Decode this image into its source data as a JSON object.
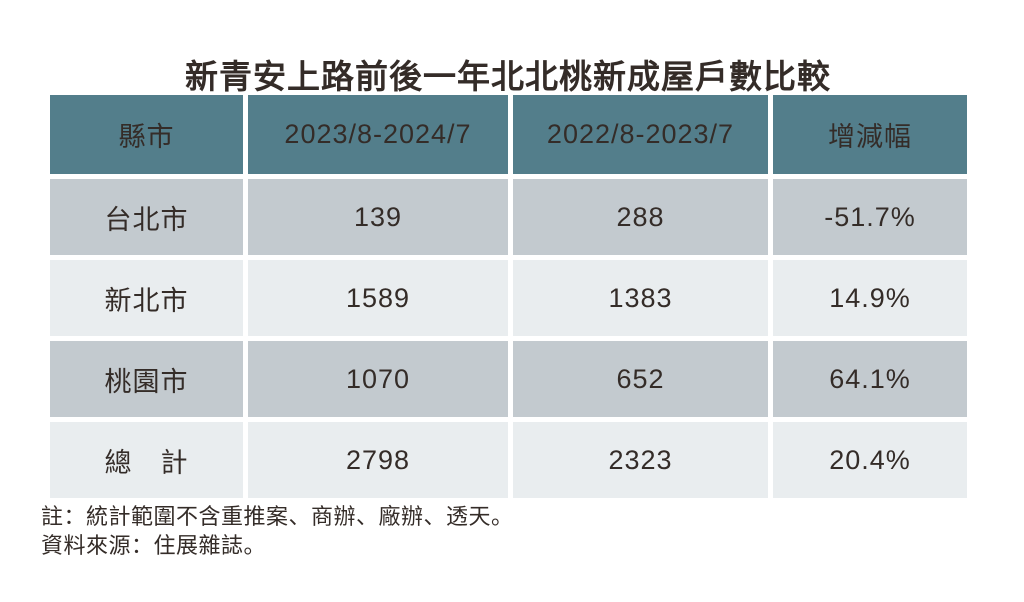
{
  "title": "新青安上路前後一年北北桃新成屋戶數比較",
  "chart_data": {
    "type": "table",
    "title": "新青安上路前後一年北北桃新成屋戶數比較",
    "columns": [
      "縣市",
      "2023/8-2024/7",
      "2022/8-2023/7",
      "增減幅"
    ],
    "rows": [
      [
        "台北市",
        "139",
        "288",
        "-51.7%"
      ],
      [
        "新北市",
        "1589",
        "1383",
        "14.9%"
      ],
      [
        "桃園市",
        "1070",
        "652",
        "64.1%"
      ],
      [
        "總　計",
        "2798",
        "2323",
        "20.4%"
      ]
    ],
    "series": [
      {
        "name": "2023/8-2024/7",
        "values": [
          139,
          1589,
          1070,
          2798
        ]
      },
      {
        "name": "2022/8-2023/7",
        "values": [
          288,
          1383,
          652,
          2323
        ]
      },
      {
        "name": "增減幅",
        "values": [
          "-51.7%",
          "14.9%",
          "64.1%",
          "20.4%"
        ]
      }
    ],
    "categories": [
      "台北市",
      "新北市",
      "桃園市",
      "總計"
    ]
  },
  "notes": {
    "line1": "註：統計範圍不含重推案、商辦、廠辦、透天。",
    "line2": "資料來源：住展雜誌。"
  },
  "colors": {
    "header_bg": "#537e8b",
    "row_dark": "#c3cacf",
    "row_light": "#e9edef",
    "text": "#342c28",
    "background": "#ffffff"
  }
}
